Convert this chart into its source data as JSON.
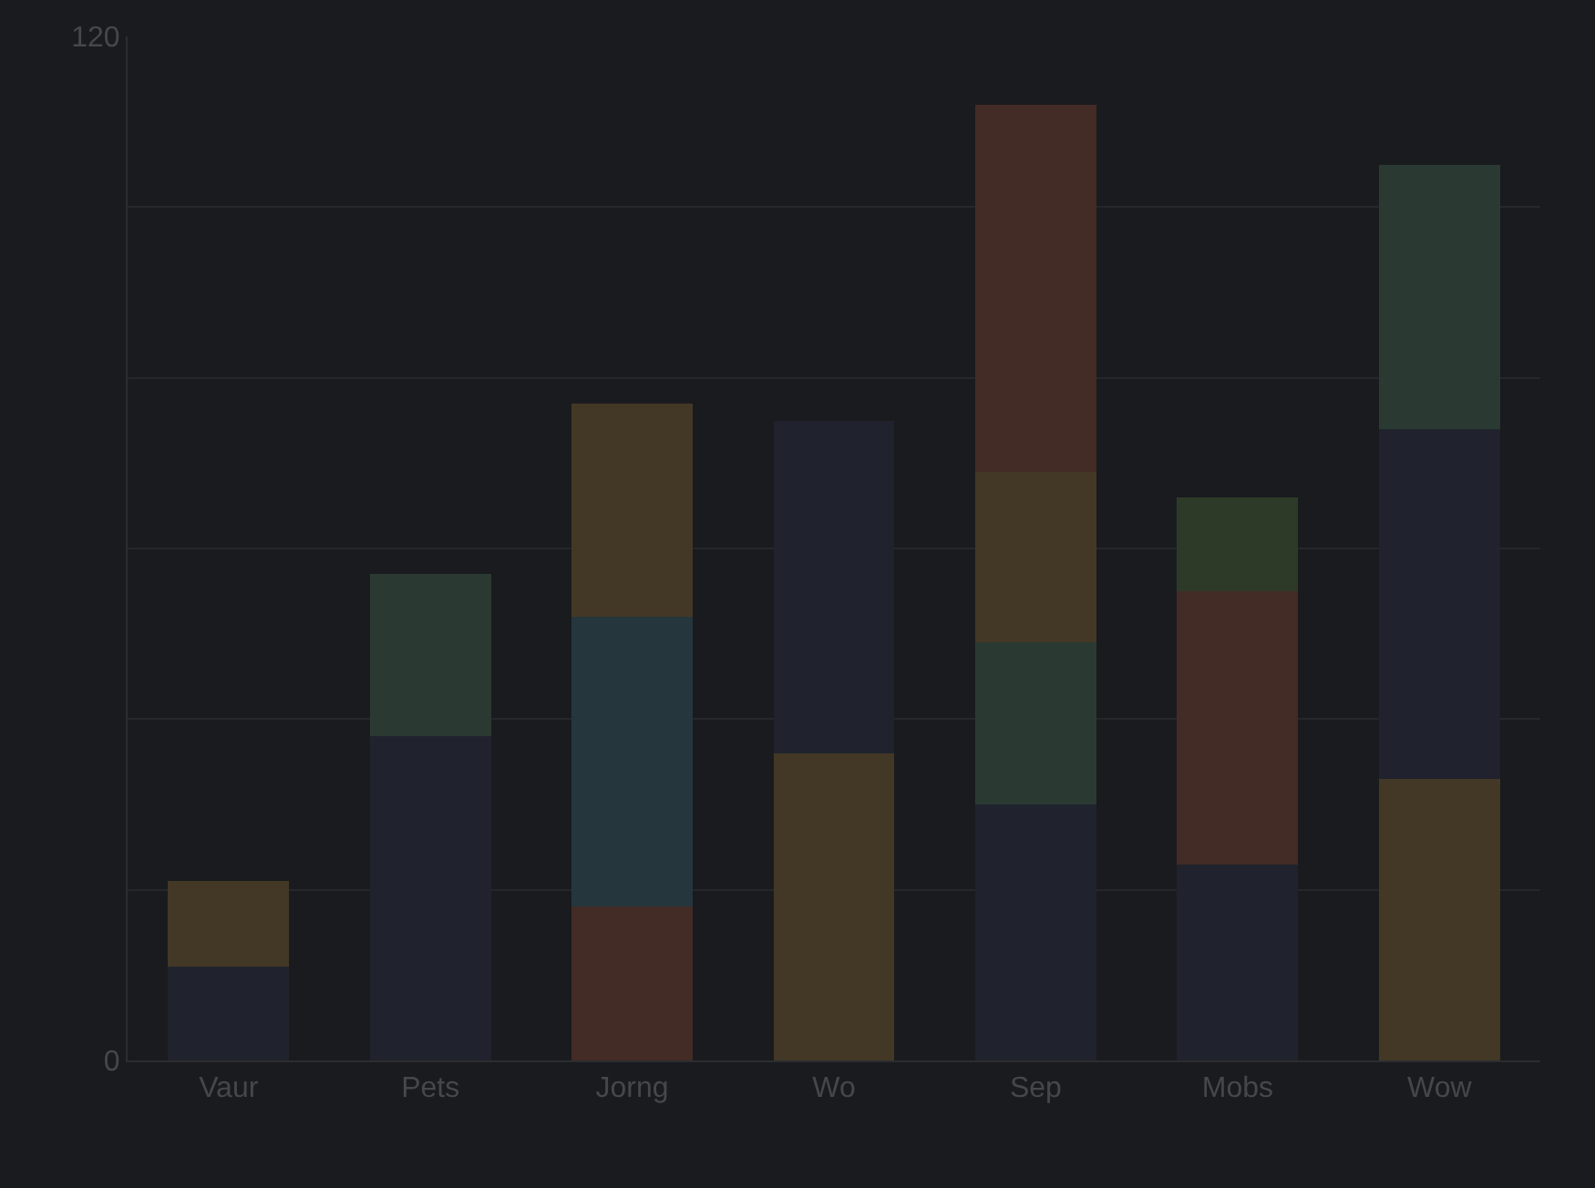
{
  "chart_data": {
    "type": "bar",
    "stacked": true,
    "categories": [
      "Vaur",
      "Pets",
      "Jorng",
      "Wo",
      "Sep",
      "Mobs",
      "Wow"
    ],
    "series": [
      {
        "values": [
          11,
          38,
          18,
          36,
          30,
          23,
          33
        ],
        "colors": [
          "#20232d",
          "#20232d",
          "#432b26",
          "#433826",
          "#20232d",
          "#20232d",
          "#433826"
        ]
      },
      {
        "values": [
          10,
          19,
          34,
          39,
          19,
          32,
          41
        ],
        "colors": [
          "#433826",
          "#2a3a33",
          "#25363d",
          "#20232d",
          "#2a3a33",
          "#432b26",
          "#20232d"
        ]
      },
      {
        "values": [
          null,
          null,
          25,
          null,
          20,
          11,
          31
        ],
        "colors": [
          "#433826",
          "#433826",
          "#433826",
          "#433826",
          "#433826",
          "#2e3a28",
          "#2a3a33"
        ]
      },
      {
        "values": [
          null,
          null,
          null,
          null,
          43,
          null,
          null
        ],
        "colors": [
          "#432b26",
          "#432b26",
          "#432b26",
          "#432b26",
          "#432b26",
          "#432b26",
          "#432b26"
        ]
      }
    ],
    "ylim": [
      0,
      120
    ],
    "yticks": [
      0,
      {
        "value": 20,
        "label": null
      },
      {
        "value": 40,
        "label": null
      },
      {
        "value": 60,
        "label": null
      },
      {
        "value": 80,
        "label": null
      },
      {
        "value": 100,
        "label": null
      },
      120
    ],
    "grid": "y"
  }
}
